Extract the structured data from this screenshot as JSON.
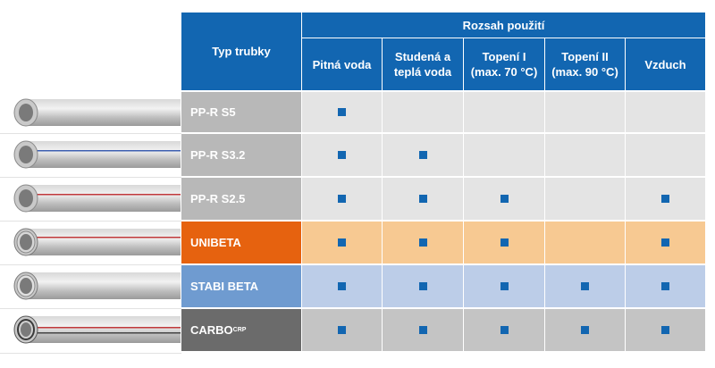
{
  "colors": {
    "header_blue": "#1266b1",
    "marker_blue": "#1266b1",
    "row_grey": "#e4e4e4",
    "row_orange": "#f7c992",
    "row_blue": "#bccde8",
    "row_dark": "#c4c4c4",
    "type_orange": "#e6620f"
  },
  "header": {
    "type_label": "Typ trubky",
    "range_label": "Rozsah použití",
    "columns": [
      {
        "line1": "Pitná voda",
        "line2": ""
      },
      {
        "line1": "Studená a",
        "line2": "teplá voda"
      },
      {
        "line1": "Topení I",
        "line2": "(max. 70 °C)"
      },
      {
        "line1": "Topení II",
        "line2": "(max. 90 °C)"
      },
      {
        "line1": "Vzduch",
        "line2": ""
      }
    ]
  },
  "rows": [
    {
      "type": "PP-R S5",
      "sup": "",
      "stripe": "none",
      "marks": [
        true,
        false,
        false,
        false,
        false
      ]
    },
    {
      "type": "PP-R S3.2",
      "sup": "",
      "stripe": "#3d5fb0",
      "marks": [
        true,
        true,
        false,
        false,
        false
      ]
    },
    {
      "type": "PP-R S2.5",
      "sup": "",
      "stripe": "#c0393b",
      "marks": [
        true,
        true,
        true,
        false,
        true
      ]
    },
    {
      "type": "UNIBETA",
      "sup": "",
      "stripe": "#c0393b",
      "marks": [
        true,
        true,
        true,
        false,
        true
      ]
    },
    {
      "type": "STABI BETA",
      "sup": "",
      "stripe": "none",
      "marks": [
        true,
        true,
        true,
        true,
        true
      ]
    },
    {
      "type": "CARBO",
      "sup": "CRP",
      "stripe": "#c0393b",
      "marks": [
        true,
        true,
        true,
        true,
        true
      ]
    }
  ],
  "pipe_icons": [
    "pipe-icon",
    "pipe-icon",
    "pipe-icon",
    "pipe-icon",
    "pipe-icon",
    "pipe-icon"
  ]
}
